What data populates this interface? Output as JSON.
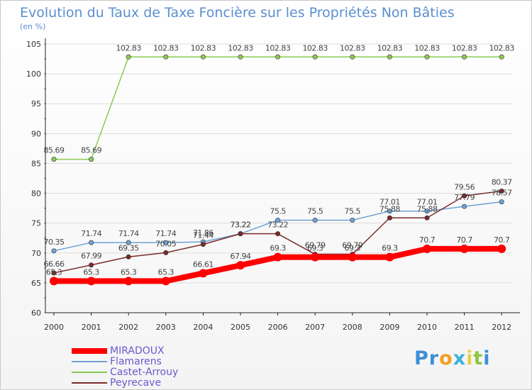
{
  "title": "Evolution du Taux de Taxe Foncière sur les Propriétés Non Bâties",
  "unit": "(en %)",
  "brand": {
    "letters": [
      "P",
      "r",
      "o",
      "x",
      "i",
      "t",
      "i"
    ],
    "colors": [
      "#3b8fd9",
      "#3b8fd9",
      "#f0a020",
      "#3bb0e0",
      "#e8d040",
      "#8cc63f",
      "#3b8fd9"
    ]
  },
  "chart_data": {
    "type": "line",
    "title": "Evolution du Taux de Taxe Foncière sur les Propriétés Non Bâties",
    "ylabel": "(en %)",
    "xlabel": "",
    "ylim": [
      60,
      105
    ],
    "yticks": [
      60,
      65,
      70,
      75,
      80,
      85,
      90,
      95,
      100,
      105
    ],
    "categories": [
      "2000",
      "2001",
      "2002",
      "2003",
      "2004",
      "2005",
      "2006",
      "2007",
      "2008",
      "2009",
      "2010",
      "2011",
      "2012"
    ],
    "series": [
      {
        "name": "MIRADOUX",
        "color": "#ff0000",
        "width": 8,
        "values": [
          65.3,
          65.3,
          65.3,
          65.3,
          66.61,
          67.94,
          69.3,
          69.3,
          69.3,
          69.3,
          70.7,
          70.7,
          70.7
        ],
        "labels": [
          "65.3",
          "65.3",
          "65.3",
          "65.3",
          "66.61",
          "67.94",
          "69.3",
          "69.3",
          "69.3",
          "69.3",
          "70.7",
          "70.7",
          "70.7"
        ]
      },
      {
        "name": "Flamarens",
        "color": "#6ea2d4",
        "width": 1.5,
        "values": [
          70.35,
          71.74,
          71.74,
          71.74,
          71.86,
          73.22,
          75.5,
          75.5,
          75.5,
          77.01,
          77.01,
          77.79,
          78.57
        ],
        "labels": [
          "70.35",
          "71.74",
          "71.74",
          "71.74",
          "71.86",
          "73.22",
          "75.5",
          "75.5",
          "75.5",
          "77.01",
          "77.01",
          "77.79",
          "78.57"
        ]
      },
      {
        "name": "Castet-Arrouy",
        "color": "#88cc55",
        "width": 1.5,
        "values": [
          85.69,
          85.69,
          102.83,
          102.83,
          102.83,
          102.83,
          102.83,
          102.83,
          102.83,
          102.83,
          102.83,
          102.83,
          102.83
        ],
        "labels": [
          "85.69",
          "85.69",
          "102.83",
          "102.83",
          "102.83",
          "102.83",
          "102.83",
          "102.83",
          "102.83",
          "102.83",
          "102.83",
          "102.83",
          "102.83"
        ]
      },
      {
        "name": "Peyrecave",
        "color": "#7a2a2a",
        "width": 1.5,
        "values": [
          66.66,
          67.99,
          69.35,
          70.05,
          71.44,
          73.22,
          73.22,
          69.79,
          69.79,
          75.88,
          75.88,
          79.56,
          80.37
        ],
        "labels": [
          "66.66",
          "67.99",
          "69.35",
          "70.05",
          "71.44",
          "73.22",
          "73.22",
          "69.79",
          "69.79",
          "75.88",
          "75.88",
          "79.56",
          "80.37"
        ]
      }
    ],
    "legend": "bottom-left"
  }
}
